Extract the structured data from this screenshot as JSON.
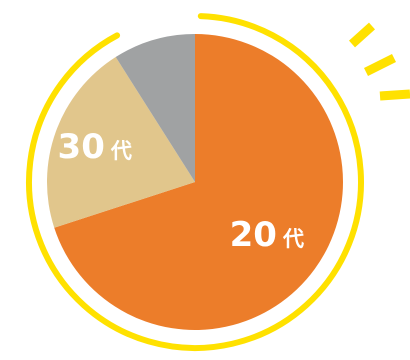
{
  "chart_data": {
    "type": "pie",
    "title": "",
    "slices": [
      {
        "label": "20代",
        "number": "20",
        "unit": "代",
        "value": 70,
        "color": "#ec7d2a",
        "show_label": true
      },
      {
        "label": "30代",
        "number": "30",
        "unit": "代",
        "value": 21,
        "color": "#e1c68c",
        "show_label": true
      },
      {
        "label": "",
        "number": "",
        "unit": "",
        "value": 9,
        "color": "#a0a2a3",
        "show_label": false
      }
    ],
    "start_angle_deg": 0,
    "direction": "clockwise",
    "legend": "none"
  },
  "decoration": {
    "ring_color": "#ffe100",
    "burst_color": "#ffe100"
  }
}
